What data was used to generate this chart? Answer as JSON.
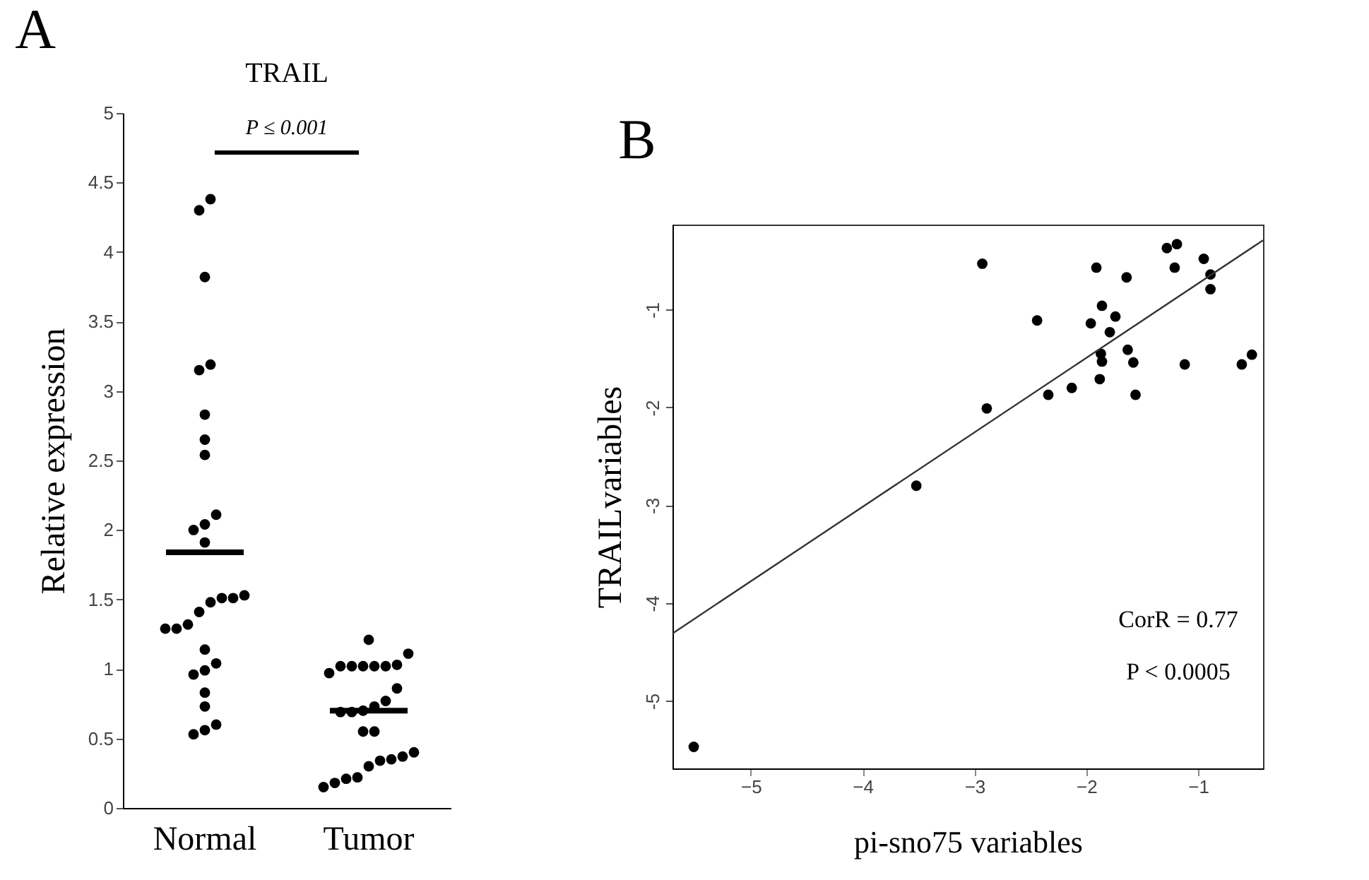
{
  "chart_data": [
    {
      "type": "scatter",
      "title": "TRAIL",
      "ylabel": "Relative expression",
      "categories": [
        "Normal",
        "Tumor"
      ],
      "ylim": [
        0,
        5
      ],
      "yticks": [
        0,
        0.5,
        1,
        1.5,
        2,
        2.5,
        3,
        3.5,
        4,
        4.5,
        5
      ],
      "grid": false,
      "marker": "circle",
      "annotations": [
        "A",
        "P ≤ 0.001"
      ],
      "series": [
        {
          "color": "#000000",
          "x": [
            "Normal",
            "Normal",
            "Normal",
            "Normal",
            "Normal",
            "Normal",
            "Normal",
            "Normal",
            "Normal",
            "Normal",
            "Normal",
            "Normal",
            "Normal",
            "Normal",
            "Normal",
            "Normal",
            "Normal",
            "Normal",
            "Normal",
            "Normal",
            "Normal",
            "Normal",
            "Normal",
            "Normal",
            "Normal",
            "Normal",
            "Normal",
            "Normal",
            "Normal"
          ],
          "values": [
            4.38,
            4.3,
            3.82,
            3.15,
            3.19,
            2.83,
            2.65,
            2.54,
            2.04,
            2.11,
            2.0,
            1.91,
            1.51,
            1.53,
            1.48,
            1.51,
            1.41,
            1.32,
            1.29,
            1.29,
            1.14,
            0.99,
            0.96,
            1.04,
            0.83,
            0.73,
            0.53,
            0.56,
            0.6
          ]
        },
        {
          "color": "#000000",
          "x": [
            "Tumor",
            "Tumor",
            "Tumor",
            "Tumor",
            "Tumor",
            "Tumor",
            "Tumor",
            "Tumor",
            "Tumor",
            "Tumor",
            "Tumor",
            "Tumor",
            "Tumor",
            "Tumor",
            "Tumor",
            "Tumor",
            "Tumor",
            "Tumor",
            "Tumor",
            "Tumor",
            "Tumor",
            "Tumor",
            "Tumor",
            "Tumor",
            "Tumor",
            "Tumor"
          ],
          "values": [
            1.21,
            1.11,
            1.03,
            1.02,
            1.02,
            1.02,
            1.02,
            1.02,
            0.97,
            0.86,
            0.77,
            0.73,
            0.69,
            0.69,
            0.55,
            0.55,
            0.37,
            0.35,
            0.34,
            0.4,
            0.3,
            0.18,
            0.15,
            0.21,
            0.22,
            0.7
          ]
        },
        {
          "color": "#000000",
          "type": "box",
          "boxes": [
            {
              "low": 1.84,
              "q1": 1.84,
              "median": 1.84,
              "q3": 1.84,
              "high": 1.84
            },
            {
              "low": 0.7,
              "q1": 0.7,
              "median": 0.7,
              "q3": 0.7,
              "high": 0.7
            }
          ]
        }
      ]
    },
    {
      "type": "scatter",
      "xlabel": "pi-sno75 variables",
      "ylabel": "TRAILvariables",
      "xlim": [
        -5.7,
        -0.42
      ],
      "ylim": [
        -5.69,
        -0.13
      ],
      "xticks": [
        -5,
        -4,
        -3,
        -2,
        -1
      ],
      "yticks": [
        -5,
        -4,
        -3,
        -2,
        -1
      ],
      "grid": false,
      "annotations": [
        "B",
        "CorR = 0.77",
        "P < 0.0005"
      ],
      "series": [
        {
          "color": "#000000",
          "marker": "circle",
          "x": [
            -2.93,
            -1.91,
            -1.64,
            -1.28,
            -1.19,
            -1.21,
            -0.95,
            -0.89,
            -0.89,
            -1.86,
            -2.44,
            -1.96,
            -1.74,
            -1.79,
            -1.87,
            -1.86,
            -1.63,
            -1.58,
            -1.12,
            -0.61,
            -0.52,
            -1.88,
            -2.13,
            -2.34,
            -1.56,
            -2.89,
            -3.52,
            -5.51
          ],
          "values": [
            -0.53,
            -0.57,
            -0.67,
            -0.37,
            -0.33,
            -0.57,
            -0.48,
            -0.64,
            -0.79,
            -0.96,
            -1.11,
            -1.14,
            -1.07,
            -1.23,
            -1.45,
            -1.53,
            -1.41,
            -1.54,
            -1.56,
            -1.56,
            -1.46,
            -1.71,
            -1.8,
            -1.87,
            -1.87,
            -2.01,
            -2.8,
            -5.47
          ]
        },
        {
          "color": "#333333",
          "type": "line",
          "marker": "none",
          "line_style": "solid",
          "x": [
            -5.7,
            -0.42
          ],
          "values": [
            -4.31,
            -0.29
          ]
        }
      ]
    }
  ]
}
